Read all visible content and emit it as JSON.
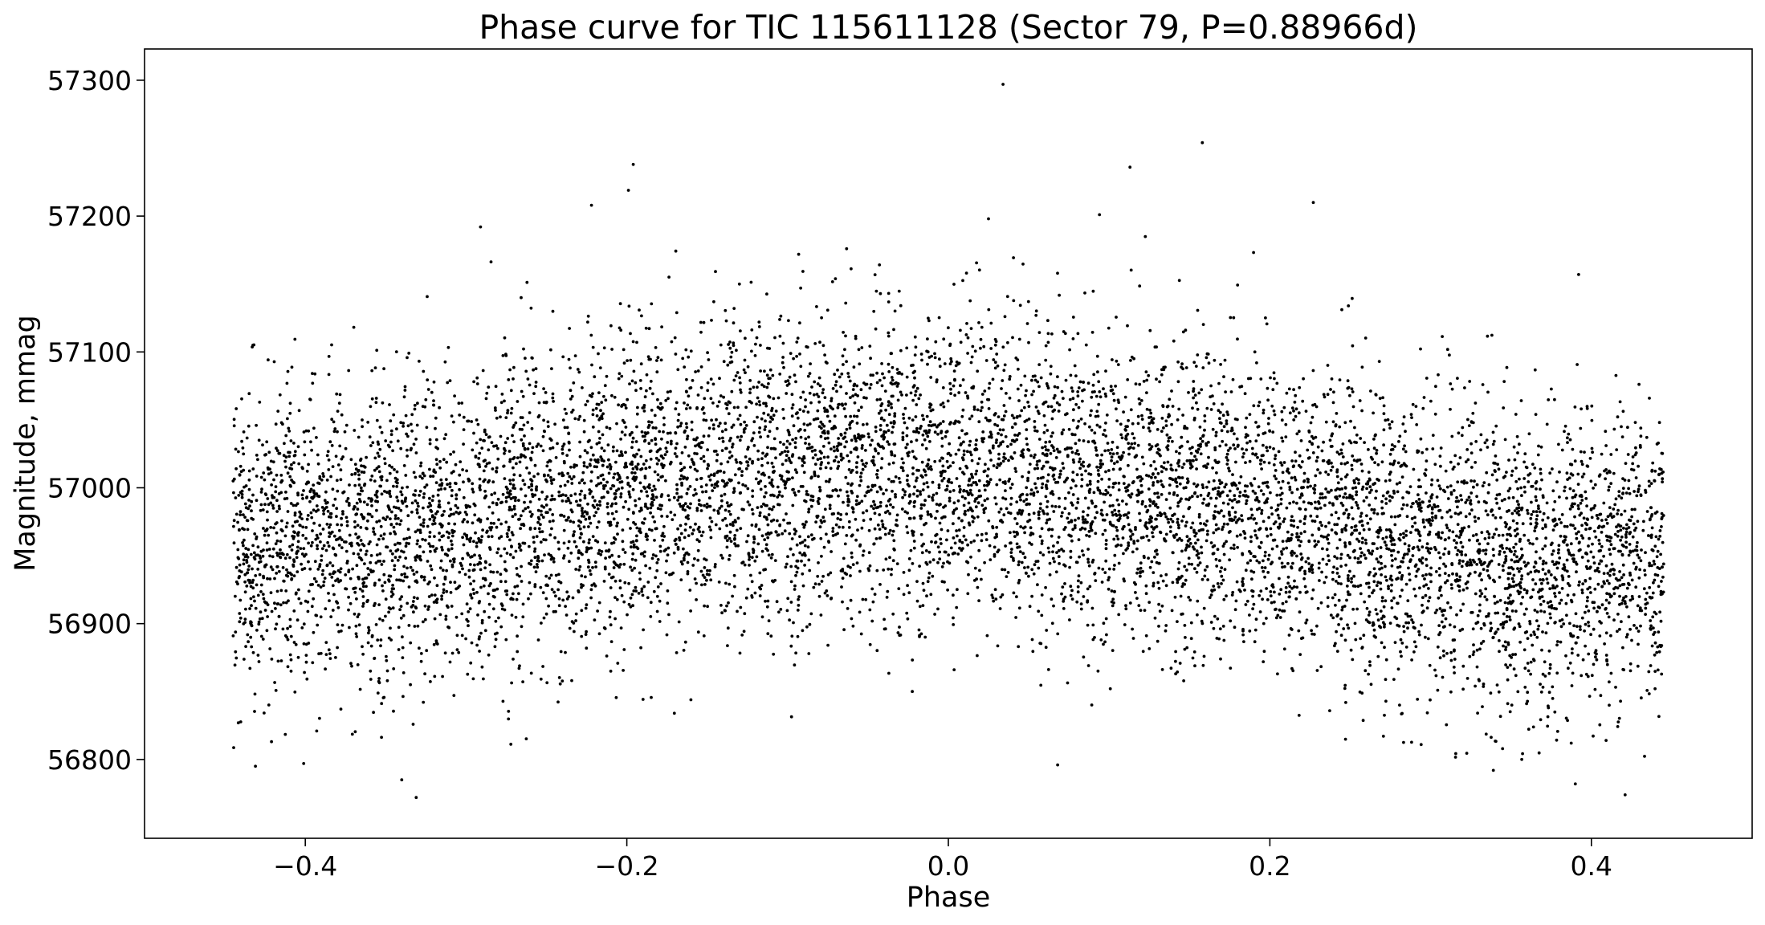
{
  "chart_data": {
    "type": "scatter",
    "title": "Phase curve for TIC 115611128 (Sector 79, P=0.88966d)",
    "xlabel": "Phase",
    "ylabel": "Magnitude, mmag",
    "xlim": [
      -0.5,
      0.5
    ],
    "ylim": [
      56742,
      57323
    ],
    "xticks": [
      -0.4,
      -0.2,
      0.0,
      0.2,
      0.4
    ],
    "xtick_labels": [
      "−0.4",
      "−0.2",
      "0.0",
      "0.2",
      "0.4"
    ],
    "yticks": [
      56800,
      56900,
      57000,
      57100,
      57200,
      57300
    ],
    "ytick_labels": [
      "56800",
      "56900",
      "57000",
      "57100",
      "57200",
      "57300"
    ],
    "grid": false,
    "legend": "none",
    "marker_color": "#000000",
    "series": [
      {
        "x_range": [
          -0.445,
          0.445
        ],
        "point_count": 9000,
        "trend_phase": [
          -0.44,
          -0.35,
          -0.25,
          -0.15,
          -0.05,
          0.0,
          0.05,
          0.15,
          0.25,
          0.35,
          0.44
        ],
        "trend_mag": [
          56955,
          56965,
          56985,
          57005,
          57015,
          57015,
          57010,
          56995,
          56970,
          56945,
          56950
        ],
        "scatter_sd_mmag": 55,
        "outliers": [
          {
            "x": 0.034,
            "y": 57297
          },
          {
            "x": 0.158,
            "y": 57254
          },
          {
            "x": -0.196,
            "y": 57238
          },
          {
            "x": 0.113,
            "y": 57236
          },
          {
            "x": -0.199,
            "y": 57219
          },
          {
            "x": 0.227,
            "y": 57210
          },
          {
            "x": -0.222,
            "y": 57208
          },
          {
            "x": 0.094,
            "y": 57201
          },
          {
            "x": 0.025,
            "y": 57198
          },
          {
            "x": -0.291,
            "y": 57192
          },
          {
            "x": -0.331,
            "y": 56772
          },
          {
            "x": 0.421,
            "y": 56774
          },
          {
            "x": 0.39,
            "y": 56782
          },
          {
            "x": -0.34,
            "y": 56785
          },
          {
            "x": 0.339,
            "y": 56792
          },
          {
            "x": -0.401,
            "y": 56797
          },
          {
            "x": -0.431,
            "y": 56795
          },
          {
            "x": 0.068,
            "y": 56796
          }
        ]
      }
    ]
  }
}
